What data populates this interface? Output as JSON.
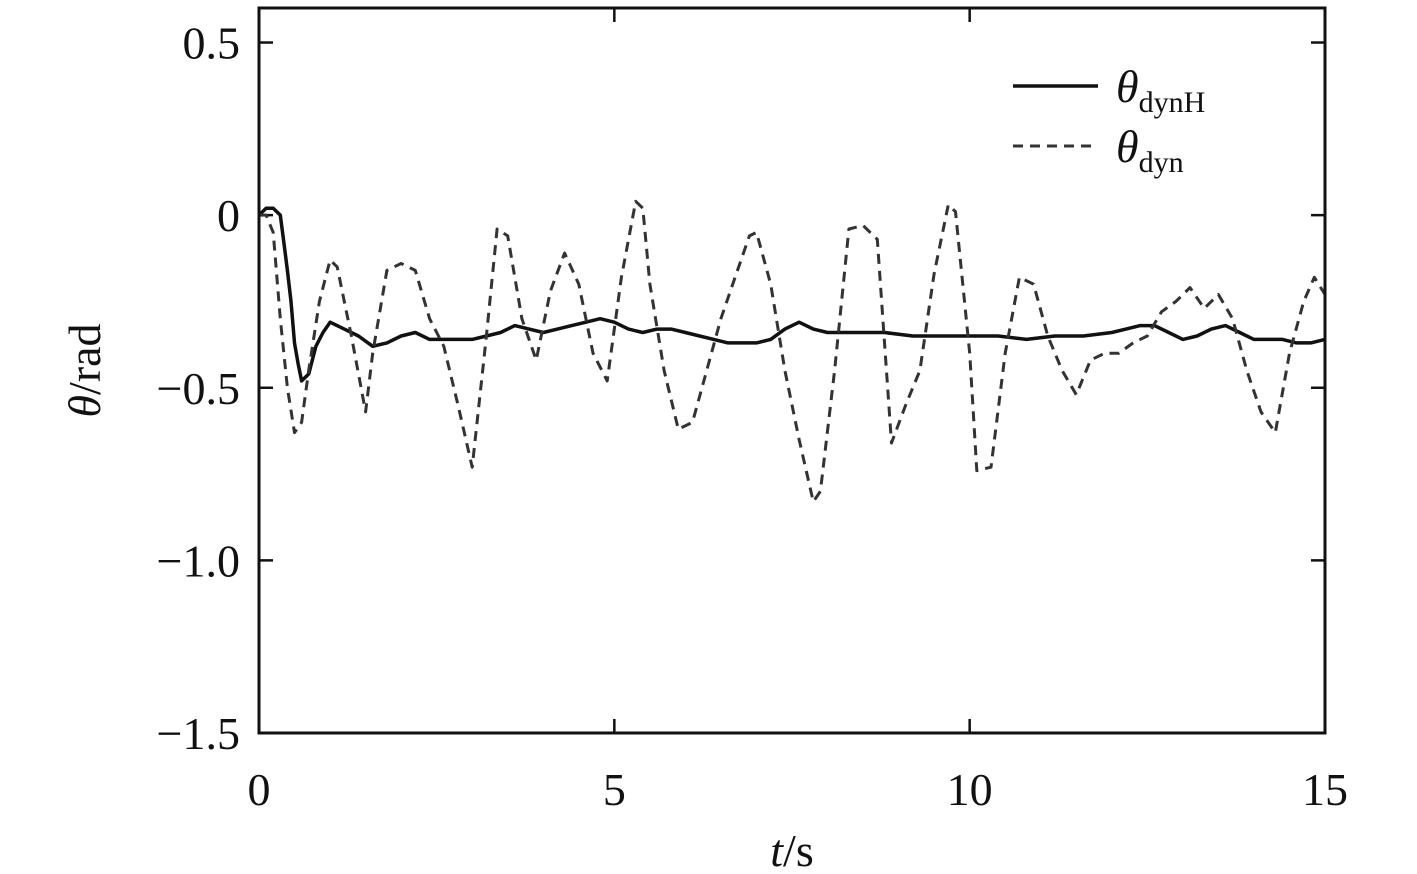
{
  "chart_data": {
    "type": "line",
    "xlabel": {
      "italic": "t",
      "rest": "/s"
    },
    "ylabel": {
      "italic": "θ",
      "rest": "/rad"
    },
    "xlim": [
      0,
      15
    ],
    "ylim": [
      -1.5,
      0.6
    ],
    "x_ticks": [
      0,
      5,
      10,
      15
    ],
    "x_tick_labels": [
      "0",
      "5",
      "10",
      "15"
    ],
    "y_ticks": [
      0.5,
      0,
      -0.5,
      -1.0,
      -1.5
    ],
    "y_tick_labels": [
      "0.5",
      "0",
      "-0.5",
      "-1.0",
      "-1.5"
    ],
    "grid": false,
    "legend_position": "top-right",
    "series": [
      {
        "name": "θdynH",
        "legend_main": "θ",
        "legend_sub": "dynH",
        "style": "solid",
        "color": "#111111",
        "x": [
          0,
          0.1,
          0.2,
          0.3,
          0.35,
          0.4,
          0.45,
          0.5,
          0.55,
          0.6,
          0.7,
          0.8,
          0.9,
          1.0,
          1.2,
          1.4,
          1.6,
          1.8,
          2.0,
          2.2,
          2.4,
          2.6,
          3.0,
          3.2,
          3.4,
          3.6,
          3.8,
          4.0,
          4.2,
          4.4,
          4.6,
          4.8,
          5.0,
          5.2,
          5.4,
          5.6,
          5.8,
          6.0,
          6.2,
          6.4,
          6.6,
          6.8,
          7.0,
          7.2,
          7.4,
          7.6,
          7.8,
          8.0,
          8.4,
          8.8,
          9.2,
          9.6,
          10.0,
          10.4,
          10.8,
          11.2,
          11.6,
          12.0,
          12.2,
          12.4,
          12.6,
          12.8,
          13.0,
          13.2,
          13.4,
          13.6,
          13.8,
          14.0,
          14.2,
          14.4,
          14.6,
          14.8,
          15.0
        ],
        "y": [
          0,
          0.02,
          0.02,
          0,
          -0.08,
          -0.16,
          -0.25,
          -0.37,
          -0.43,
          -0.48,
          -0.46,
          -0.38,
          -0.34,
          -0.31,
          -0.33,
          -0.35,
          -0.38,
          -0.37,
          -0.35,
          -0.34,
          -0.36,
          -0.36,
          -0.36,
          -0.35,
          -0.34,
          -0.32,
          -0.33,
          -0.34,
          -0.33,
          -0.32,
          -0.31,
          -0.3,
          -0.31,
          -0.33,
          -0.34,
          -0.33,
          -0.33,
          -0.34,
          -0.35,
          -0.36,
          -0.37,
          -0.37,
          -0.37,
          -0.36,
          -0.33,
          -0.31,
          -0.33,
          -0.34,
          -0.34,
          -0.34,
          -0.35,
          -0.35,
          -0.35,
          -0.35,
          -0.36,
          -0.35,
          -0.35,
          -0.34,
          -0.33,
          -0.32,
          -0.32,
          -0.34,
          -0.36,
          -0.35,
          -0.33,
          -0.32,
          -0.34,
          -0.36,
          -0.36,
          -0.36,
          -0.37,
          -0.37,
          -0.36
        ]
      },
      {
        "name": "θdyn",
        "legend_main": "θ",
        "legend_sub": "dyn",
        "style": "dashed",
        "color": "#333333",
        "x": [
          0,
          0.1,
          0.2,
          0.3,
          0.4,
          0.5,
          0.6,
          0.7,
          0.85,
          1.0,
          1.1,
          1.3,
          1.5,
          1.6,
          1.8,
          2.0,
          2.2,
          2.4,
          2.6,
          2.8,
          3.0,
          3.2,
          3.35,
          3.5,
          3.7,
          3.9,
          4.1,
          4.3,
          4.5,
          4.7,
          4.9,
          5.1,
          5.3,
          5.4,
          5.5,
          5.7,
          5.9,
          6.1,
          6.3,
          6.5,
          6.7,
          6.9,
          7.0,
          7.2,
          7.4,
          7.6,
          7.8,
          7.9,
          8.1,
          8.3,
          8.5,
          8.7,
          8.9,
          9.1,
          9.3,
          9.5,
          9.7,
          9.8,
          10.0,
          10.1,
          10.3,
          10.5,
          10.7,
          10.9,
          11.1,
          11.3,
          11.5,
          11.7,
          11.9,
          12.1,
          12.3,
          12.5,
          12.7,
          12.9,
          13.1,
          13.3,
          13.5,
          13.7,
          13.9,
          14.1,
          14.3,
          14.5,
          14.7,
          14.85,
          15.0
        ],
        "y": [
          0,
          0,
          -0.05,
          -0.3,
          -0.5,
          -0.63,
          -0.6,
          -0.45,
          -0.25,
          -0.13,
          -0.15,
          -0.35,
          -0.57,
          -0.4,
          -0.16,
          -0.14,
          -0.16,
          -0.3,
          -0.38,
          -0.55,
          -0.73,
          -0.35,
          -0.04,
          -0.06,
          -0.3,
          -0.42,
          -0.22,
          -0.11,
          -0.2,
          -0.4,
          -0.48,
          -0.18,
          0.04,
          0.02,
          -0.2,
          -0.45,
          -0.62,
          -0.6,
          -0.45,
          -0.3,
          -0.18,
          -0.06,
          -0.05,
          -0.2,
          -0.45,
          -0.65,
          -0.83,
          -0.8,
          -0.45,
          -0.04,
          -0.03,
          -0.07,
          -0.66,
          -0.55,
          -0.45,
          -0.17,
          0.03,
          0.01,
          -0.4,
          -0.74,
          -0.73,
          -0.4,
          -0.18,
          -0.2,
          -0.35,
          -0.45,
          -0.52,
          -0.42,
          -0.4,
          -0.4,
          -0.37,
          -0.35,
          -0.28,
          -0.25,
          -0.21,
          -0.27,
          -0.23,
          -0.3,
          -0.45,
          -0.57,
          -0.63,
          -0.4,
          -0.25,
          -0.18,
          -0.23
        ]
      }
    ]
  }
}
